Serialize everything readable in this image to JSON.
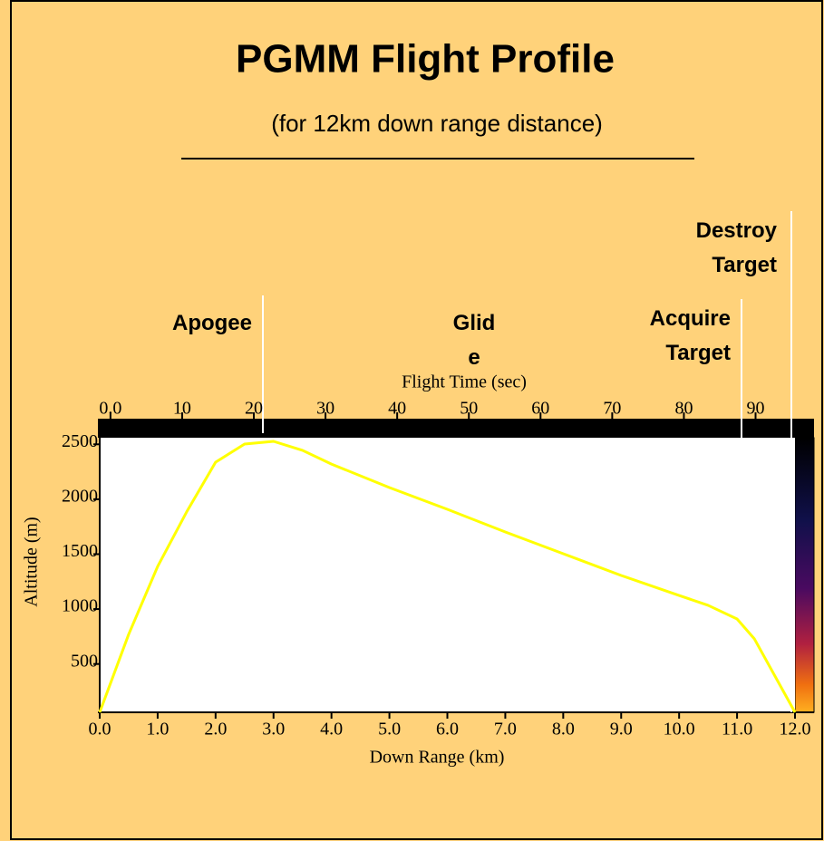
{
  "chart_data": {
    "type": "line",
    "title": "PGMM Flight Profile",
    "subtitle": "(for 12km down range distance)",
    "x_label": "Down Range (km)",
    "y_label": "Altitude (m)",
    "x2_label": "Flight Time (sec)",
    "annotations": [
      "Apogee",
      "Glide",
      "Acquire Target",
      "Destroy Target"
    ],
    "x": [
      0,
      0.5,
      1.0,
      1.5,
      2.0,
      2.5,
      3.0,
      3.5,
      4.0,
      5.0,
      6.0,
      7.0,
      8.0,
      9.0,
      10.0,
      10.5,
      11.0,
      11.3,
      12.0
    ],
    "series": [
      {
        "name": "Altitude",
        "color": "#ffff00",
        "values": [
          60,
          770,
          1388,
          1884,
          2337,
          2502,
          2527,
          2445,
          2320,
          2106,
          1908,
          1702,
          1504,
          1306,
          1124,
          1034,
          910,
          728,
          60
        ]
      }
    ],
    "xlim": [
      0,
      12
    ],
    "xticks": [
      {
        "value": 0,
        "label": "0.0"
      },
      {
        "value": 1,
        "label": "1.0"
      },
      {
        "value": 2,
        "label": "2.0"
      },
      {
        "value": 3,
        "label": "3.0"
      },
      {
        "value": 4,
        "label": "4.0"
      },
      {
        "value": 5,
        "label": "5.0"
      },
      {
        "value": 6,
        "label": "6.0"
      },
      {
        "value": 7,
        "label": "7.0"
      },
      {
        "value": 8,
        "label": "8.0"
      },
      {
        "value": 9,
        "label": "9.0"
      },
      {
        "value": 10,
        "label": "10.0"
      },
      {
        "value": 11,
        "label": "11.0"
      },
      {
        "value": 12,
        "label": "12.0"
      }
    ],
    "ylim": [
      60,
      2560
    ],
    "yticks": [
      500,
      1000,
      1500,
      2000,
      2500
    ],
    "x2lim": [
      -1.5,
      95.5
    ],
    "x2ticks": [
      {
        "value": 0,
        "label": "0.0"
      },
      10,
      20,
      30,
      40,
      50,
      60,
      70,
      80,
      90
    ],
    "grid": false
  }
}
